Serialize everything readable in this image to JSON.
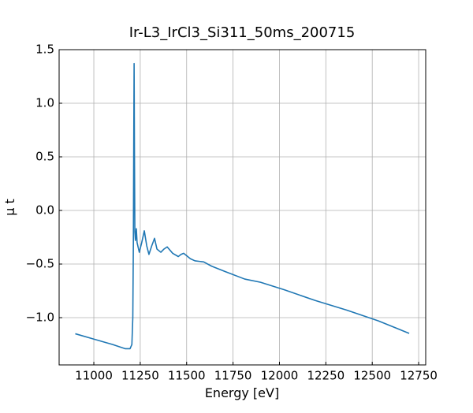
{
  "chart_data": {
    "type": "line",
    "title": "Ir-L3_IrCl3_Si311_50ms_200715",
    "x_label": "Energy [eV]",
    "y_label": "μ t",
    "x": [
      10900,
      11000,
      11100,
      11170,
      11195,
      11205,
      11210,
      11213,
      11215,
      11217,
      11219,
      11221,
      11224,
      11229,
      11233,
      11245,
      11258,
      11272,
      11285,
      11297,
      11312,
      11327,
      11340,
      11361,
      11378,
      11395,
      11425,
      11455,
      11470,
      11484,
      11520,
      11545,
      11592,
      11635,
      11707,
      11813,
      11898,
      12026,
      12193,
      12363,
      12533,
      12699
    ],
    "series": [
      {
        "name": "mu t",
        "color": "#1f77b4",
        "values": [
          -1.15,
          -1.2,
          -1.25,
          -1.29,
          -1.29,
          -1.25,
          -1.0,
          -0.3,
          0.6,
          1.37,
          0.5,
          -0.2,
          -0.28,
          -0.17,
          -0.3,
          -0.39,
          -0.3,
          -0.19,
          -0.33,
          -0.41,
          -0.33,
          -0.26,
          -0.36,
          -0.39,
          -0.36,
          -0.34,
          -0.4,
          -0.43,
          -0.41,
          -0.4,
          -0.45,
          -0.47,
          -0.48,
          -0.52,
          -0.57,
          -0.64,
          -0.67,
          -0.74,
          -0.84,
          -0.93,
          -1.03,
          -1.147
        ]
      }
    ],
    "xlim": [
      10813,
      12788
    ],
    "ylim": [
      -1.441,
      1.5
    ],
    "xticks": [
      11000,
      11250,
      11500,
      11750,
      12000,
      12250,
      12500,
      12750
    ],
    "yticks": [
      {
        "value": -1.0,
        "label": "−1.0"
      },
      {
        "value": -0.5,
        "label": "−0.5"
      },
      {
        "value": 0.0,
        "label": "0.0"
      },
      0.5,
      {
        "value": 1.0,
        "label": "1.0"
      },
      1.5
    ],
    "grid": true
  }
}
